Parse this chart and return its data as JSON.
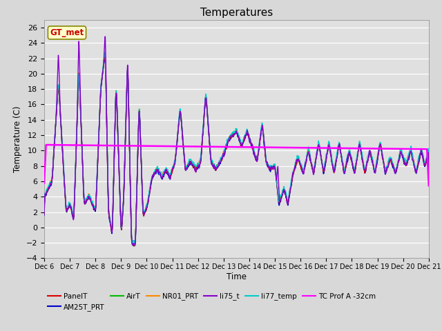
{
  "title": "Temperatures",
  "xlabel": "Time",
  "ylabel": "Temperature (C)",
  "ylim": [
    -4,
    27
  ],
  "yticks": [
    -4,
    -2,
    0,
    2,
    4,
    6,
    8,
    10,
    12,
    14,
    16,
    18,
    20,
    22,
    24,
    26
  ],
  "xlim": [
    0,
    15
  ],
  "day_labels": [
    "Dec 6",
    "Dec 7",
    "Dec 8",
    "Dec 9",
    "Dec 10",
    "Dec 11",
    "Dec 12",
    "Dec 13",
    "Dec 14",
    "Dec 15",
    "Dec 16",
    "Dec 17",
    "Dec 18",
    "Dec 19",
    "Dec 20",
    "Dec 21"
  ],
  "series_colors": {
    "PanelT": "#dd0000",
    "AM25T_PRT": "#0000cc",
    "AirT": "#00bb00",
    "NR01_PRT": "#ff8800",
    "li75_t": "#8800cc",
    "li77_temp": "#00cccc",
    "TC_Prof_A": "#ff00ff"
  },
  "annotation_text": "GT_met",
  "annotation_color": "#cc0000",
  "annotation_bg": "#ffffcc",
  "annotation_border": "#888800",
  "fig_facecolor": "#d8d8d8",
  "ax_facecolor": "#e0e0e0",
  "grid_color": "#ffffff"
}
